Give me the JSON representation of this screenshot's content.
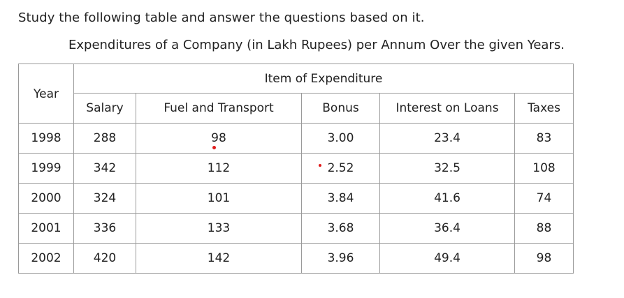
{
  "instruction": "Study the following table and answer the questions based on it.",
  "caption": "Expenditures of a Company (in Lakh Rupees) per Annum Over the given Years.",
  "table": {
    "year_header": "Year",
    "group_header": "Item of Expenditure",
    "columns": [
      "Salary",
      "Fuel and Transport",
      "Bonus",
      "Interest on Loans",
      "Taxes"
    ],
    "rows": [
      {
        "year": "1998",
        "cells": [
          "288",
          "98",
          "3.00",
          "23.4",
          "83"
        ]
      },
      {
        "year": "1999",
        "cells": [
          "342",
          "112",
          "2.52",
          "32.5",
          "108"
        ]
      },
      {
        "year": "2000",
        "cells": [
          "324",
          "101",
          "3.84",
          "41.6",
          "74"
        ]
      },
      {
        "year": "2001",
        "cells": [
          "336",
          "133",
          "3.68",
          "36.4",
          "88"
        ]
      },
      {
        "year": "2002",
        "cells": [
          "420",
          "142",
          "3.96",
          "49.4",
          "98"
        ]
      }
    ]
  },
  "colors": {
    "text": "#222222",
    "border": "#9a9a9a",
    "marker": "#e01b1b"
  }
}
